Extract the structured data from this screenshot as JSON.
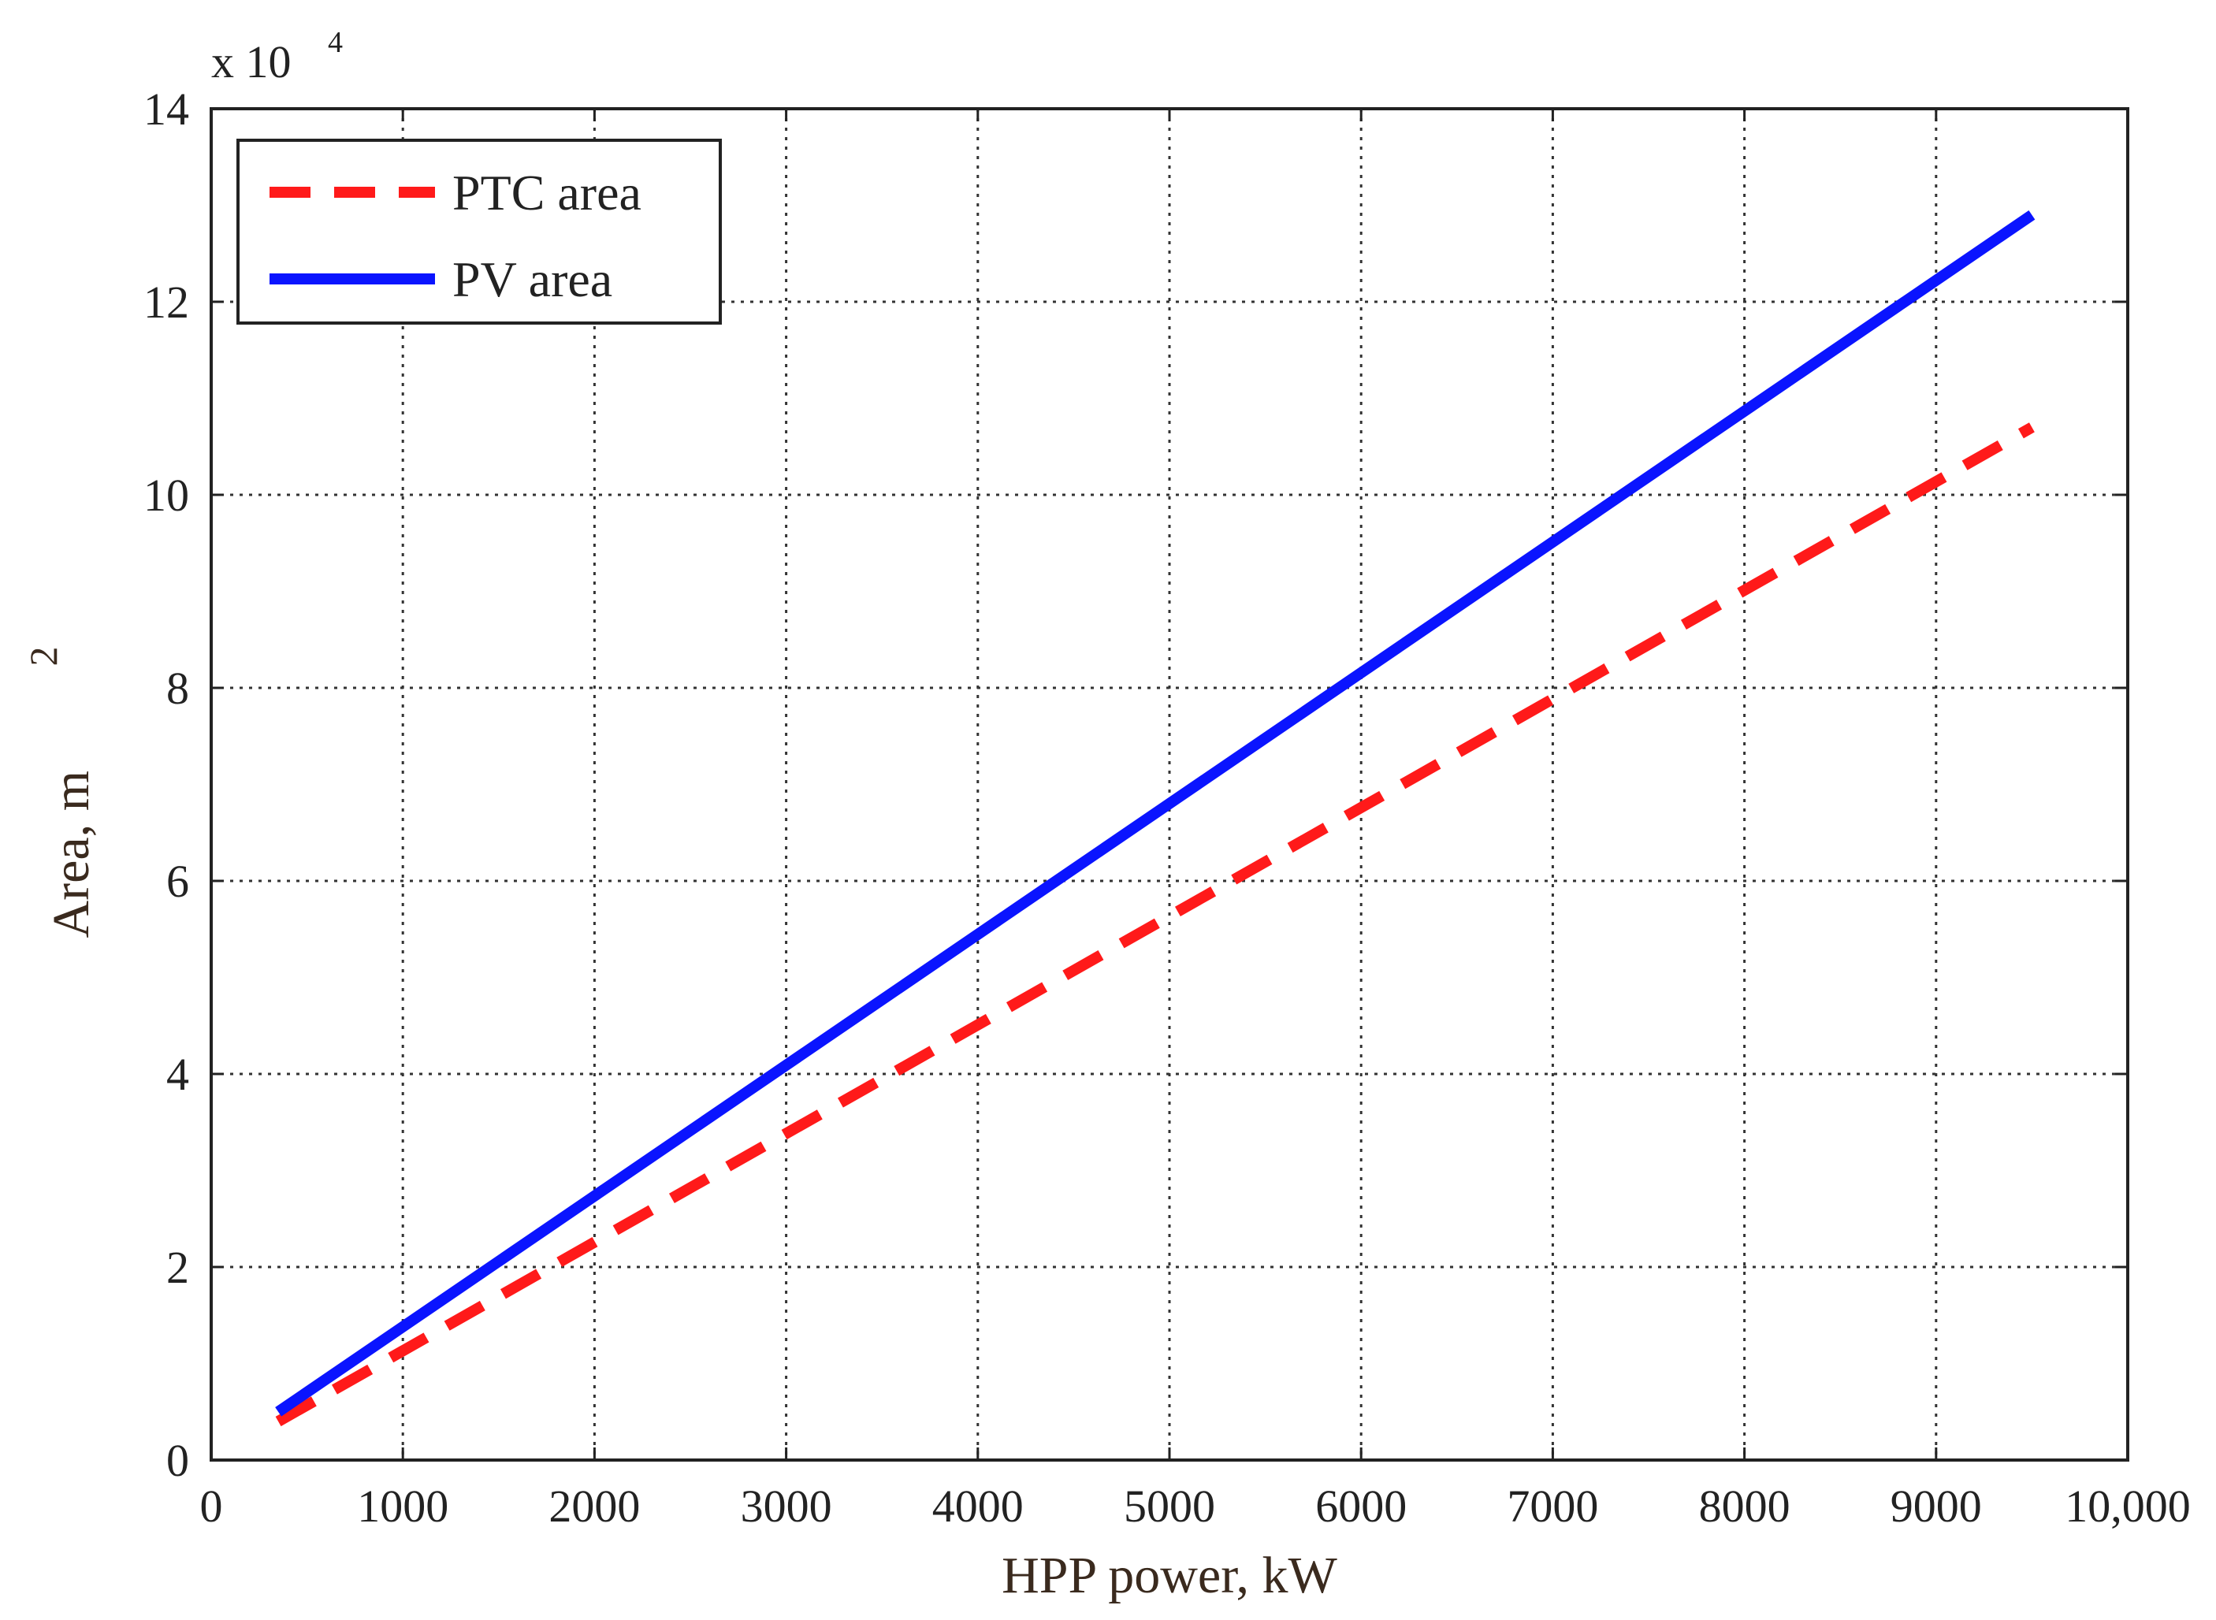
{
  "chart_data": {
    "type": "line",
    "xlabel": "HPP power, kW",
    "ylabel": "Area, m",
    "ylabel_superscript": "2",
    "y_multiplier": {
      "base": "x 10",
      "exponent": "4"
    },
    "xlim": [
      0,
      10000
    ],
    "ylim": [
      0,
      14
    ],
    "x_ticks": [
      0,
      1000,
      2000,
      3000,
      4000,
      5000,
      6000,
      7000,
      8000,
      9000,
      10000
    ],
    "x_tick_labels": [
      "0",
      "1000",
      "2000",
      "3000",
      "4000",
      "5000",
      "6000",
      "7000",
      "8000",
      "9000",
      "10,000"
    ],
    "y_ticks": [
      0,
      2,
      4,
      6,
      8,
      10,
      12,
      14
    ],
    "y_tick_labels": [
      "0",
      "2",
      "4",
      "6",
      "8",
      "10",
      "12",
      "14"
    ],
    "grid": true,
    "legend_position": "top-left",
    "series": [
      {
        "name": "PTC area",
        "color": "#ff1a1a",
        "style": "dashed",
        "x": [
          350,
          9500
        ],
        "y": [
          0.4,
          10.7
        ]
      },
      {
        "name": "PV area",
        "color": "#0a14ff",
        "style": "solid",
        "x": [
          350,
          9500
        ],
        "y": [
          0.5,
          12.9
        ]
      }
    ]
  }
}
